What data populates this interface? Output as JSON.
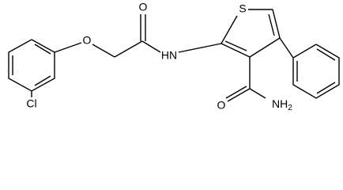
{
  "atoms": [
    {
      "label": "O"
    },
    {
      "label": "O"
    },
    {
      "label": "HN"
    },
    {
      "label": "S"
    },
    {
      "label": "O"
    },
    {
      "label": "NH",
      "subscript": "2"
    },
    {
      "label": "Cl"
    }
  ]
}
